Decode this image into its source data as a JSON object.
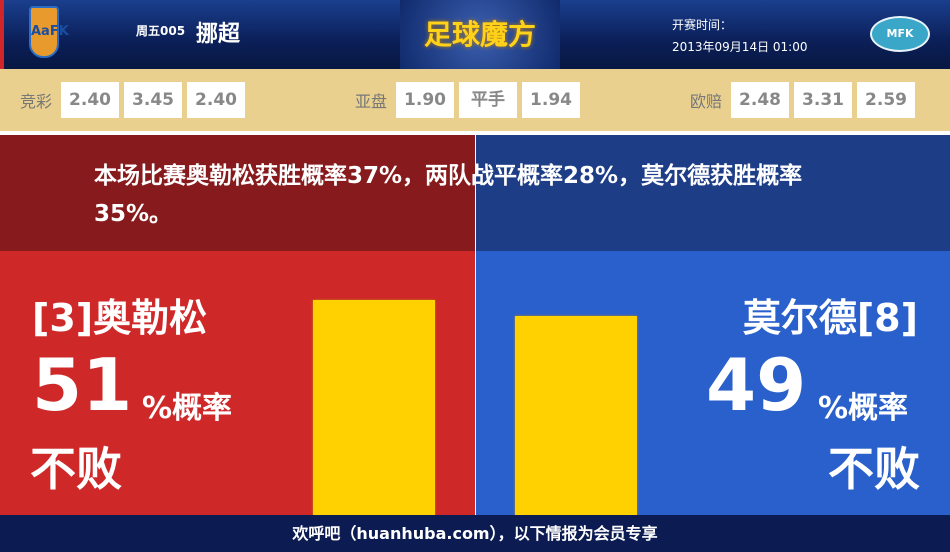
{
  "header": {
    "home_logo": "AaFK",
    "round": "周五005",
    "league": "挪超",
    "brand": "足球魔方",
    "kickoff_label": "开赛时间：",
    "kickoff_time": "2013年09月14日 01:00",
    "away_logo": "MFK"
  },
  "odds": {
    "jingcai": {
      "label": "竞彩",
      "values": [
        "2.40",
        "3.45",
        "2.40"
      ]
    },
    "yapan": {
      "label": "亚盘",
      "values": [
        "1.90",
        "平手",
        "1.94"
      ]
    },
    "oupei": {
      "label": "欧赔",
      "values": [
        "2.48",
        "3.31",
        "2.59"
      ]
    }
  },
  "summary": "本场比赛奥勒松获胜概率37%，两队战平概率28%，莫尔德获胜概率35%。",
  "home": {
    "name": "[3]奥勒松",
    "percent": "51",
    "unit": "%概率",
    "label": "不败",
    "value": 51,
    "color": "#ce2829"
  },
  "away": {
    "name": "莫尔德[8]",
    "percent": "49",
    "unit": "%概率",
    "label": "不败",
    "value": 49,
    "color": "#2a60cc"
  },
  "bar_color": "#ffd100",
  "footer": "欢呼吧（huanhuba.com），以下情报为会员专享"
}
